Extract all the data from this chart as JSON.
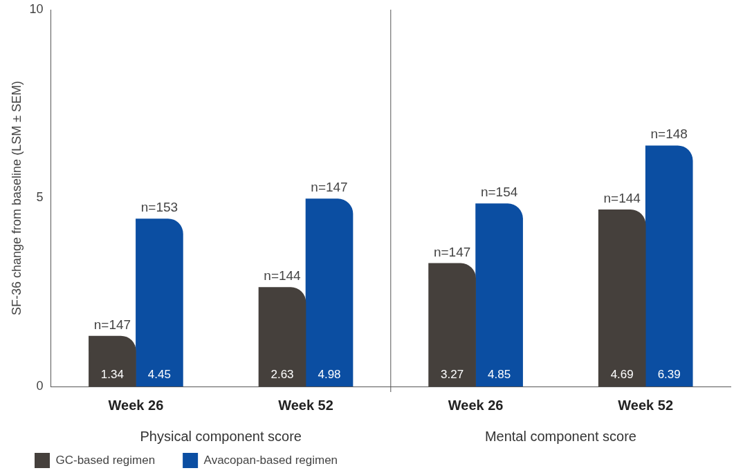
{
  "chart_data": {
    "type": "bar",
    "ylabel": "SF-36 change from baseline (LSM ± SEM)",
    "categories": [
      "Week 26",
      "Week 52",
      "Week 26",
      "Week 52"
    ],
    "series": [
      {
        "name": "GC-based regimen",
        "color": "#45403c",
        "values": [
          1.34,
          2.63,
          3.27,
          4.69
        ]
      },
      {
        "name": "Avacopan-based regimen",
        "color": "#0b4ea2",
        "values": [
          4.45,
          4.98,
          4.85,
          6.39
        ]
      }
    ],
    "ylim": [
      0,
      10
    ],
    "yticks": [
      0,
      5,
      10
    ],
    "grid": false,
    "legend": "bottom left",
    "data_labels": true,
    "annotations": [
      "n=147",
      "n=144",
      "n=147",
      "n=144",
      "n=153",
      "n=147",
      "n=154",
      "n=148",
      "Physical component score",
      "Mental component score"
    ]
  }
}
